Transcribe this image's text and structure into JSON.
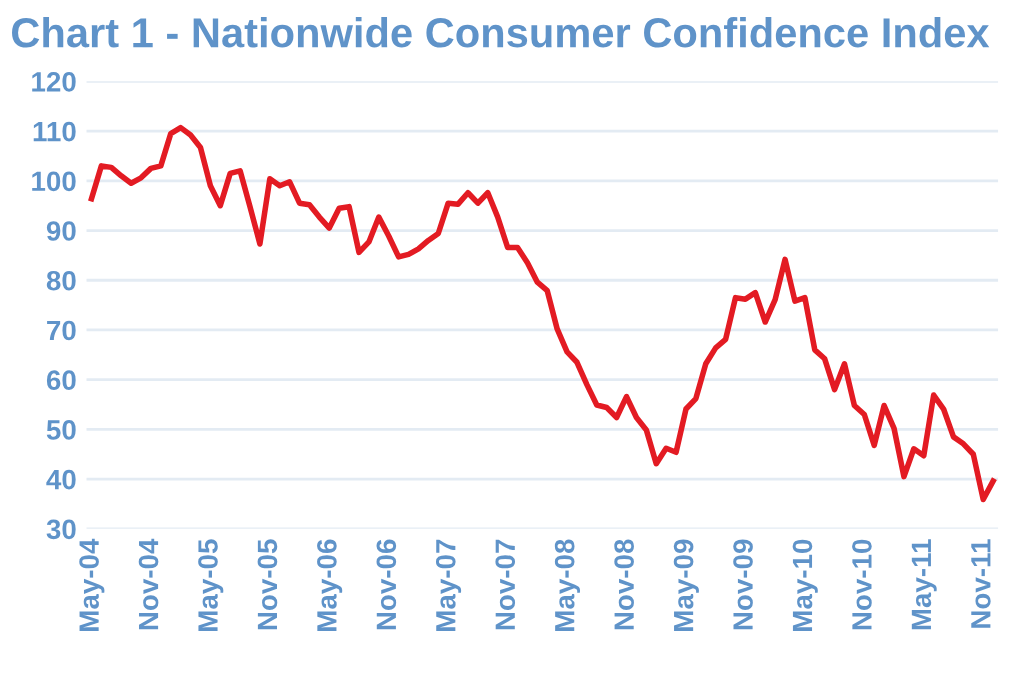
{
  "chart_data": {
    "type": "line",
    "title": "Chart 1 - Nationwide Consumer Confidence Index",
    "categories": [
      "May-04",
      null,
      null,
      null,
      null,
      null,
      "Nov-04",
      null,
      null,
      null,
      null,
      null,
      "May-05",
      null,
      null,
      null,
      null,
      null,
      "Nov-05",
      null,
      null,
      null,
      null,
      null,
      "May-06",
      null,
      null,
      null,
      null,
      null,
      "Nov-06",
      null,
      null,
      null,
      null,
      null,
      "May-07",
      null,
      null,
      null,
      null,
      null,
      "Nov-07",
      null,
      null,
      null,
      null,
      null,
      "May-08",
      null,
      null,
      null,
      null,
      null,
      "Nov-08",
      null,
      null,
      null,
      null,
      null,
      "May-09",
      null,
      null,
      null,
      null,
      null,
      "Nov-09",
      null,
      null,
      null,
      null,
      null,
      "May-10",
      null,
      null,
      null,
      null,
      null,
      "Nov-10",
      null,
      null,
      null,
      null,
      null,
      "May-11",
      null,
      null,
      null,
      null,
      null,
      "Nov-11",
      null
    ],
    "series": [
      {
        "color": "#e31b23",
        "values": [
          96.4,
          103,
          102.7,
          101,
          99.5,
          100.6,
          102.5,
          103,
          109.5,
          110.7,
          109.2,
          106.7,
          99,
          95,
          101.5,
          102,
          94.8,
          87.3,
          100.4,
          99,
          99.8,
          95.5,
          95.2,
          92.7,
          90.5,
          94.5,
          94.8,
          85.6,
          87.7,
          92.7,
          88.9,
          84.7,
          85.2,
          86.3,
          88,
          89.4,
          95.5,
          95.3,
          97.6,
          95.5,
          97.6,
          92.7,
          86.6,
          86.6,
          83.5,
          79.6,
          77.9,
          70.2,
          65.6,
          63.5,
          59,
          54.9,
          54.4,
          52.4,
          56.6,
          52.4,
          49.9,
          43.1,
          46.2,
          45.4,
          54.1,
          56.2,
          63.2,
          66.4,
          68.1,
          76.5,
          76.2,
          77.5,
          71.6,
          76.1,
          84.2,
          75.8,
          76.5,
          66,
          64.2,
          58,
          63.2,
          54.8,
          53,
          46.8,
          54.8,
          50.2,
          40.5,
          46.1,
          44.7,
          56.9,
          54.1,
          48.5,
          47.1,
          45,
          35.9,
          39.6
        ]
      }
    ],
    "ylim": [
      30,
      120
    ],
    "yticks": [
      30,
      40,
      50,
      60,
      70,
      80,
      90,
      100,
      110,
      120
    ],
    "grid": "y",
    "legend": false,
    "marker": "none",
    "line_style": "solid"
  }
}
